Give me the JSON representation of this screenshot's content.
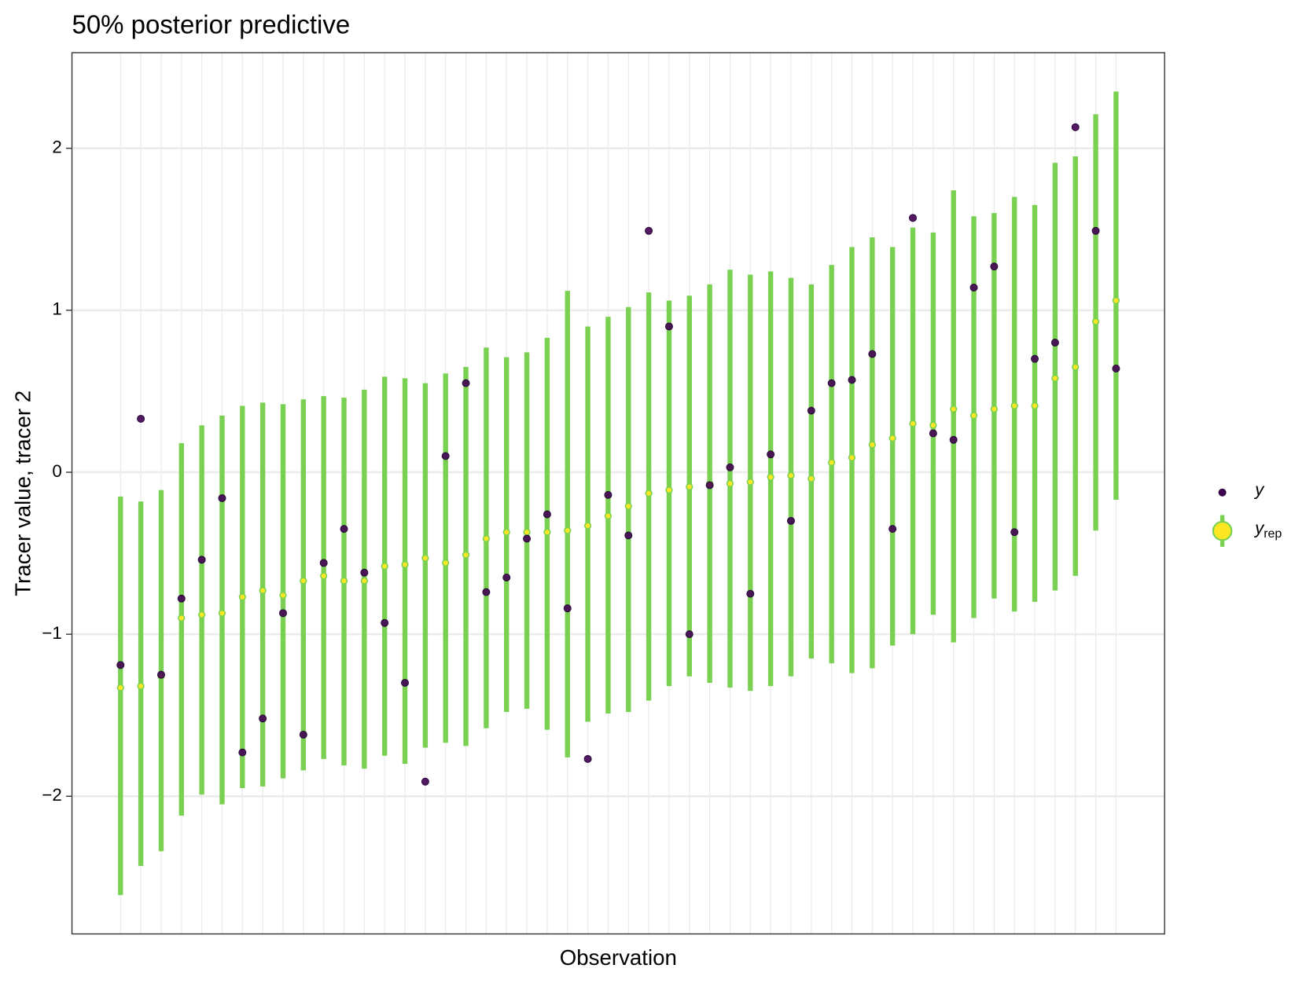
{
  "chart_data": {
    "type": "interval",
    "title": "50% posterior predictive",
    "x_label": "Observation",
    "y_label": "Tracer value, tracer 2",
    "x": [
      1,
      2,
      3,
      4,
      5,
      6,
      7,
      8,
      9,
      10,
      11,
      12,
      13,
      14,
      15,
      16,
      17,
      18,
      19,
      20,
      21,
      22,
      23,
      24,
      25,
      26,
      27,
      28,
      29,
      30,
      31,
      32,
      33,
      34,
      35,
      36,
      37,
      38,
      39,
      40,
      41,
      42,
      43,
      44,
      45,
      46,
      47,
      48,
      49,
      50
    ],
    "xlim": [
      -1.39,
      52.39
    ],
    "ylim": [
      -2.85,
      2.59
    ],
    "yticks": [
      {
        "value": -2,
        "label": "−2"
      },
      {
        "value": -1,
        "label": "−1"
      },
      0,
      1,
      2
    ],
    "grid": true,
    "series": [
      {
        "name": "y",
        "color": "#440154",
        "values": [
          -1.19,
          0.33,
          -1.25,
          -0.78,
          -0.54,
          -0.16,
          -1.73,
          -1.52,
          -0.87,
          -1.62,
          -0.56,
          -0.35,
          -0.62,
          -0.93,
          -1.3,
          -1.91,
          0.1,
          0.55,
          -0.74,
          -0.65,
          -0.41,
          -0.26,
          -0.84,
          -1.77,
          -0.14,
          -0.39,
          1.49,
          0.9,
          -1.0,
          -0.08,
          0.03,
          -0.75,
          0.11,
          -0.3,
          0.38,
          0.55,
          0.57,
          0.73,
          -0.35,
          1.57,
          0.24,
          0.2,
          1.14,
          1.27,
          -0.37,
          0.7,
          0.8,
          2.13,
          1.49,
          0.64
        ]
      },
      {
        "name": "y",
        "subscript": "rep",
        "color": "#fde725",
        "interval_color": "#7ad151",
        "values": [
          -1.33,
          -1.32,
          -1.26,
          -0.9,
          -0.88,
          -0.87,
          -0.77,
          -0.73,
          -0.76,
          -0.67,
          -0.64,
          -0.67,
          -0.67,
          -0.58,
          -0.57,
          -0.53,
          -0.56,
          -0.51,
          -0.41,
          -0.37,
          -0.37,
          -0.37,
          -0.36,
          -0.33,
          -0.27,
          -0.21,
          -0.13,
          -0.11,
          -0.09,
          -0.07,
          -0.07,
          -0.06,
          -0.03,
          -0.02,
          -0.04,
          0.06,
          0.09,
          0.17,
          0.21,
          0.3,
          0.29,
          0.39,
          0.35,
          0.39,
          0.41,
          0.41,
          0.58,
          0.65,
          0.93,
          1.06
        ],
        "low": [
          -2.61,
          -2.43,
          -2.34,
          -2.12,
          -1.99,
          -2.05,
          -1.95,
          -1.94,
          -1.89,
          -1.84,
          -1.77,
          -1.81,
          -1.83,
          -1.75,
          -1.8,
          -1.7,
          -1.67,
          -1.69,
          -1.58,
          -1.48,
          -1.46,
          -1.59,
          -1.76,
          -1.54,
          -1.49,
          -1.48,
          -1.41,
          -1.32,
          -1.26,
          -1.3,
          -1.33,
          -1.35,
          -1.32,
          -1.26,
          -1.15,
          -1.18,
          -1.24,
          -1.21,
          -1.07,
          -1.0,
          -0.88,
          -1.05,
          -0.9,
          -0.78,
          -0.86,
          -0.8,
          -0.73,
          -0.64,
          -0.36,
          -0.17
        ],
        "high": [
          -0.15,
          -0.18,
          -0.11,
          0.18,
          0.29,
          0.35,
          0.41,
          0.43,
          0.42,
          0.45,
          0.47,
          0.46,
          0.51,
          0.59,
          0.58,
          0.55,
          0.61,
          0.65,
          0.77,
          0.71,
          0.74,
          0.83,
          1.12,
          0.9,
          0.96,
          1.02,
          1.11,
          1.06,
          1.09,
          1.16,
          1.25,
          1.22,
          1.24,
          1.2,
          1.16,
          1.28,
          1.39,
          1.45,
          1.39,
          1.51,
          1.48,
          1.74,
          1.58,
          1.6,
          1.7,
          1.65,
          1.91,
          1.95,
          2.21,
          2.35
        ]
      }
    ]
  }
}
